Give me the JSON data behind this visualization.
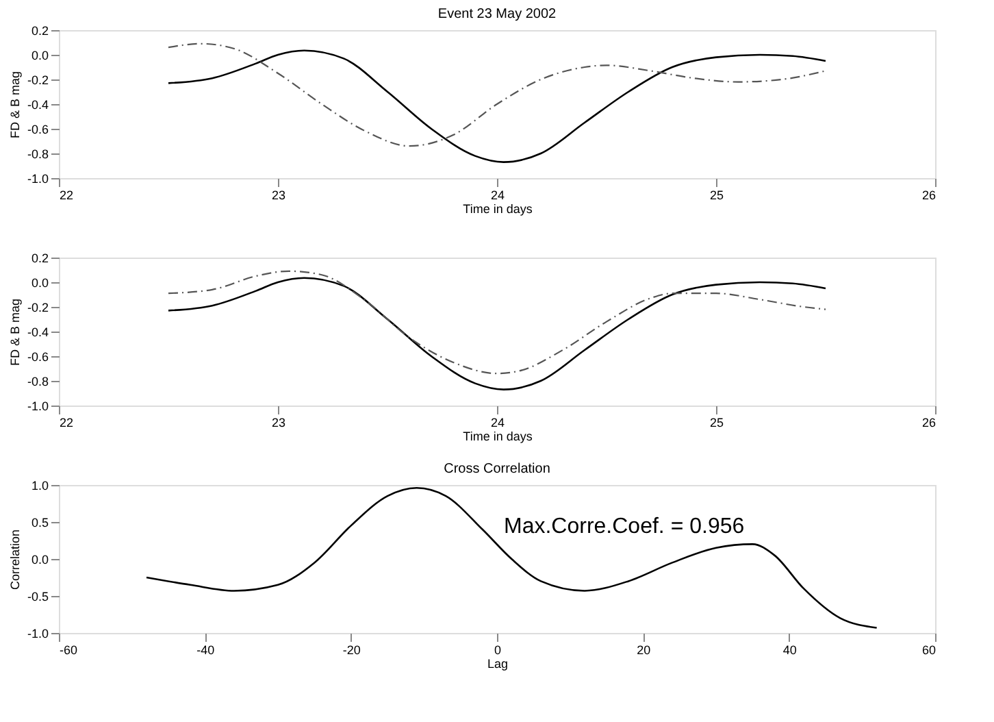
{
  "chart_data": [
    {
      "type": "line",
      "title": "Event 23 May 2002",
      "xlabel": "Time in days",
      "ylabel": "FD & B mag",
      "xlim": [
        22,
        26
      ],
      "xticks": [
        22,
        23,
        24,
        25,
        26
      ],
      "ylim": [
        -1.0,
        0.2
      ],
      "yticks": [
        {
          "value": -1.0,
          "label": "-1.0"
        },
        {
          "value": -0.8,
          "label": "-0.8"
        },
        {
          "value": -0.6,
          "label": "-0.6"
        },
        {
          "value": -0.4,
          "label": "-0.4"
        },
        {
          "value": -0.2,
          "label": "-0.2"
        },
        {
          "value": 0.0,
          "label": "0.0"
        },
        {
          "value": 0.2,
          "label": "0.2"
        }
      ],
      "grid": false,
      "legend": false,
      "series": [
        {
          "color": "#000000",
          "line_style": "solid",
          "x": [
            22.5,
            22.7,
            22.9,
            23.0,
            23.12,
            23.3,
            23.5,
            23.7,
            23.9,
            24.03,
            24.2,
            24.4,
            24.6,
            24.8,
            25.0,
            25.2,
            25.35,
            25.5
          ],
          "values": [
            -0.23,
            -0.19,
            -0.07,
            0.0,
            0.035,
            -0.03,
            -0.3,
            -0.6,
            -0.82,
            -0.87,
            -0.8,
            -0.55,
            -0.3,
            -0.1,
            -0.02,
            0.0,
            -0.01,
            -0.05
          ]
        },
        {
          "color": "#555555",
          "line_style": "dashed",
          "x": [
            22.5,
            22.65,
            22.8,
            23.0,
            23.2,
            23.4,
            23.6,
            23.8,
            24.0,
            24.2,
            24.4,
            24.5,
            24.7,
            24.9,
            25.1,
            25.3,
            25.5
          ],
          "values": [
            0.06,
            0.09,
            0.05,
            -0.15,
            -0.4,
            -0.62,
            -0.74,
            -0.65,
            -0.4,
            -0.2,
            -0.1,
            -0.085,
            -0.13,
            -0.19,
            -0.22,
            -0.2,
            -0.13
          ]
        }
      ]
    },
    {
      "type": "line",
      "xlabel": "Time in days",
      "ylabel": "FD & B mag",
      "xlim": [
        22,
        26
      ],
      "xticks": [
        22,
        23,
        24,
        25,
        26
      ],
      "ylim": [
        -1.0,
        0.2
      ],
      "yticks": [
        {
          "value": -1.0,
          "label": "-1.0"
        },
        {
          "value": -0.8,
          "label": "-0.8"
        },
        {
          "value": -0.6,
          "label": "-0.6"
        },
        {
          "value": -0.4,
          "label": "-0.4"
        },
        {
          "value": -0.2,
          "label": "-0.2"
        },
        {
          "value": 0.0,
          "label": "0.0"
        },
        {
          "value": 0.2,
          "label": "0.2"
        }
      ],
      "grid": false,
      "legend": false,
      "series": [
        {
          "color": "#000000",
          "line_style": "solid",
          "x": [
            22.5,
            22.7,
            22.9,
            23.0,
            23.12,
            23.3,
            23.5,
            23.7,
            23.9,
            24.03,
            24.2,
            24.4,
            24.6,
            24.8,
            25.0,
            25.2,
            25.35,
            25.5
          ],
          "values": [
            -0.23,
            -0.19,
            -0.07,
            0.0,
            0.035,
            -0.03,
            -0.3,
            -0.6,
            -0.82,
            -0.87,
            -0.8,
            -0.55,
            -0.3,
            -0.1,
            -0.02,
            0.0,
            -0.01,
            -0.05
          ]
        },
        {
          "color": "#555555",
          "line_style": "dashed",
          "x": [
            22.5,
            22.7,
            22.9,
            23.05,
            23.2,
            23.4,
            23.6,
            23.8,
            24.0,
            24.1,
            24.3,
            24.5,
            24.7,
            24.8,
            25.0,
            25.2,
            25.4,
            25.5
          ],
          "values": [
            -0.09,
            -0.06,
            0.05,
            0.09,
            0.06,
            -0.15,
            -0.45,
            -0.65,
            -0.74,
            -0.72,
            -0.55,
            -0.32,
            -0.13,
            -0.09,
            -0.09,
            -0.14,
            -0.2,
            -0.22
          ]
        }
      ]
    },
    {
      "type": "line",
      "title": "Cross Correlation",
      "xlabel": "Lag",
      "ylabel": "Correlation",
      "xlim": [
        -60,
        60
      ],
      "xticks": [
        -60,
        -40,
        -20,
        0,
        20,
        40,
        60
      ],
      "ylim": [
        -1.0,
        1.0
      ],
      "yticks": [
        {
          "value": -1.0,
          "label": "-1.0"
        },
        {
          "value": -0.5,
          "label": "-0.5"
        },
        {
          "value": 0.0,
          "label": "0.0"
        },
        {
          "value": 0.5,
          "label": "0.5"
        },
        {
          "value": 1.0,
          "label": "1.0"
        }
      ],
      "grid": false,
      "legend": false,
      "annotations": [
        "Max.Corre.Coef. =  0.956"
      ],
      "series": [
        {
          "color": "#000000",
          "line_style": "solid",
          "x": [
            -48,
            -42,
            -36,
            -30,
            -25,
            -20,
            -15,
            -11,
            -7,
            -2,
            2,
            6,
            12,
            18,
            24,
            30,
            35,
            38,
            42,
            47,
            52
          ],
          "values": [
            -0.25,
            -0.35,
            -0.43,
            -0.35,
            -0.05,
            0.45,
            0.85,
            0.96,
            0.85,
            0.4,
            0.0,
            -0.3,
            -0.43,
            -0.3,
            -0.05,
            0.15,
            0.2,
            0.05,
            -0.4,
            -0.8,
            -0.93
          ]
        }
      ]
    }
  ]
}
